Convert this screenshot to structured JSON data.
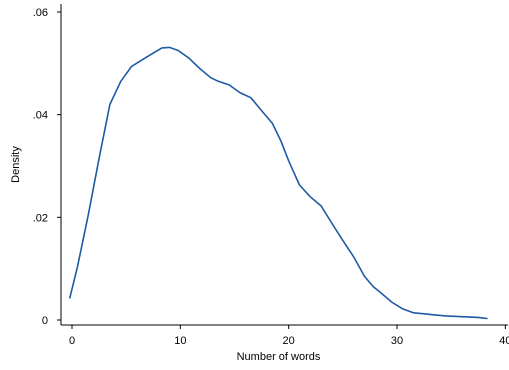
{
  "chart_data": {
    "type": "line",
    "xlabel": "Number of words",
    "ylabel": "Density",
    "xlim": [
      -1,
      40
    ],
    "ylim": [
      0,
      0.061
    ],
    "x_ticks": [
      0,
      10,
      20,
      30,
      40
    ],
    "x_tick_labels": [
      "0",
      "10",
      "20",
      "30",
      "40"
    ],
    "y_ticks": [
      0,
      0.02,
      0.04,
      0.06
    ],
    "y_tick_labels": [
      "0",
      ".02",
      ".04",
      ".06"
    ],
    "grid": false,
    "legend": "none",
    "line_color": "#1f5aa6",
    "series": [
      {
        "x": [
          -0.2,
          0.5,
          1.5,
          2.5,
          3.5,
          4.5,
          5.5,
          6.5,
          7.5,
          8.3,
          9.0,
          9.8,
          10.8,
          11.8,
          12.8,
          13.5,
          14.5,
          15.5,
          16.5,
          17.5,
          18.5,
          19.3,
          20.0,
          21.0,
          22.0,
          23.0,
          24.0,
          25.0,
          26.0,
          27.0,
          27.8,
          28.5,
          29.5,
          30.5,
          31.5,
          32.5,
          33.5,
          34.5,
          35.5,
          36.5,
          37.5,
          38.3
        ],
        "y": [
          0.0043,
          0.0103,
          0.0205,
          0.0315,
          0.042,
          0.0465,
          0.0494,
          0.0507,
          0.052,
          0.053,
          0.0531,
          0.0525,
          0.051,
          0.049,
          0.0472,
          0.0465,
          0.0458,
          0.0443,
          0.0433,
          0.0408,
          0.0383,
          0.0348,
          0.031,
          0.0263,
          0.024,
          0.0222,
          0.0188,
          0.0155,
          0.0123,
          0.0085,
          0.0065,
          0.0053,
          0.0035,
          0.0022,
          0.0014,
          0.0012,
          0.001,
          0.0008,
          0.0007,
          0.0006,
          0.0005,
          0.0003
        ]
      }
    ]
  }
}
